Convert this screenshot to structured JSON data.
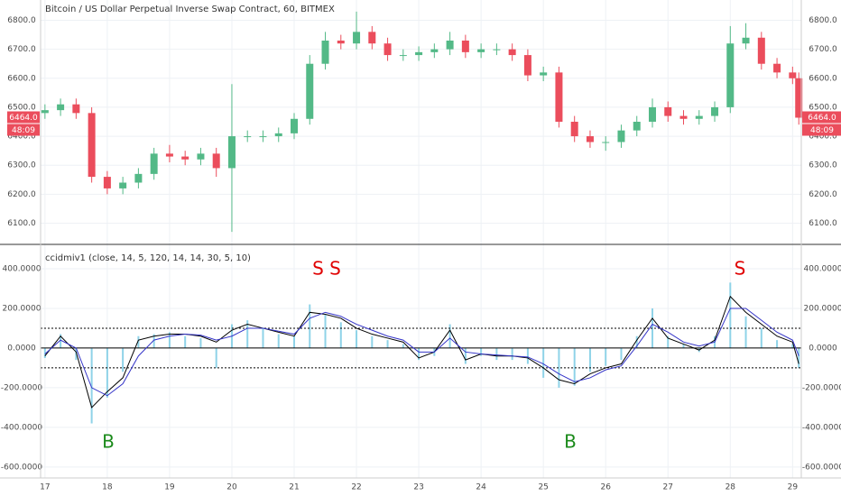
{
  "chart_data": [
    {
      "type": "candlestick",
      "title": "Bitcoin / US Dollar Perpetual Inverse Swap Contract, 60, BITMEX",
      "x": [
        17,
        17.25,
        17.5,
        17.75,
        18,
        18.25,
        18.5,
        18.75,
        19,
        19.25,
        19.5,
        19.75,
        20,
        20.25,
        20.5,
        20.75,
        21,
        21.25,
        21.5,
        21.75,
        22,
        22.25,
        22.5,
        22.75,
        23,
        23.25,
        23.5,
        23.75,
        24,
        24.25,
        24.5,
        24.75,
        25,
        25.25,
        25.5,
        25.75,
        26,
        26.25,
        26.5,
        26.75,
        27,
        27.25,
        27.5,
        27.75,
        28,
        28.25,
        28.5,
        28.75,
        29,
        29.1
      ],
      "open": [
        6480,
        6490,
        6510,
        6480,
        6260,
        6220,
        6240,
        6270,
        6340,
        6330,
        6320,
        6340,
        6290,
        6400,
        6400,
        6400,
        6410,
        6460,
        6650,
        6730,
        6720,
        6760,
        6720,
        6680,
        6680,
        6690,
        6700,
        6730,
        6690,
        6700,
        6700,
        6680,
        6610,
        6620,
        6450,
        6400,
        6380,
        6380,
        6420,
        6450,
        6500,
        6470,
        6460,
        6470,
        6500,
        6720,
        6740,
        6650,
        6620,
        6600
      ],
      "high": [
        6510,
        6530,
        6530,
        6500,
        6280,
        6260,
        6290,
        6360,
        6370,
        6350,
        6360,
        6360,
        6580,
        6420,
        6420,
        6430,
        6480,
        6680,
        6760,
        6750,
        6830,
        6780,
        6740,
        6700,
        6710,
        6720,
        6760,
        6750,
        6720,
        6720,
        6720,
        6700,
        6640,
        6640,
        6470,
        6420,
        6400,
        6440,
        6470,
        6530,
        6520,
        6490,
        6490,
        6520,
        6780,
        6790,
        6760,
        6670,
        6640,
        6620
      ],
      "low": [
        6460,
        6470,
        6460,
        6240,
        6200,
        6200,
        6220,
        6250,
        6310,
        6300,
        6300,
        6260,
        6070,
        6380,
        6380,
        6380,
        6390,
        6440,
        6630,
        6700,
        6700,
        6700,
        6660,
        6660,
        6660,
        6670,
        6680,
        6670,
        6670,
        6680,
        6660,
        6590,
        6590,
        6430,
        6380,
        6360,
        6350,
        6360,
        6400,
        6430,
        6450,
        6440,
        6440,
        6450,
        6480,
        6700,
        6630,
        6600,
        6580,
        6440
      ],
      "close": [
        6490,
        6510,
        6480,
        6260,
        6220,
        6240,
        6270,
        6340,
        6330,
        6320,
        6340,
        6290,
        6400,
        6400,
        6400,
        6410,
        6460,
        6650,
        6730,
        6720,
        6760,
        6720,
        6680,
        6680,
        6690,
        6700,
        6730,
        6690,
        6700,
        6700,
        6680,
        6610,
        6620,
        6450,
        6400,
        6380,
        6380,
        6420,
        6450,
        6500,
        6470,
        6460,
        6470,
        6500,
        6720,
        6740,
        6650,
        6620,
        6600,
        6464
      ],
      "up_color": "#53b987",
      "down_color": "#eb4d5c",
      "xlim": [
        16.93,
        29.14
      ],
      "xticks": [
        17,
        18,
        19,
        20,
        21,
        22,
        23,
        24,
        25,
        26,
        27,
        28,
        29
      ],
      "ylim": [
        6030,
        6870
      ],
      "yticks": [
        {
          "value": 6100,
          "label": "6100.0"
        },
        {
          "value": 6200,
          "label": "6200.0"
        },
        {
          "value": 6300,
          "label": "6300.0"
        },
        {
          "value": 6400,
          "label": "6400.0"
        },
        {
          "value": 6500,
          "label": "6500.0"
        },
        {
          "value": 6600,
          "label": "6600.0"
        },
        {
          "value": 6700,
          "label": "6700.0"
        },
        {
          "value": 6800,
          "label": "6800.0"
        }
      ],
      "last_price": "6464.0",
      "countdown": "48:09",
      "grid": true
    },
    {
      "type": "indicator",
      "title": "ccidmiv1 (close, 14, 5, 120, 14, 14, 30, 5, 10)",
      "x": [
        17,
        17.25,
        17.5,
        17.75,
        18,
        18.25,
        18.5,
        18.75,
        19,
        19.25,
        19.5,
        19.75,
        20,
        20.25,
        20.5,
        20.75,
        21,
        21.25,
        21.5,
        21.75,
        22,
        22.25,
        22.5,
        22.75,
        23,
        23.25,
        23.5,
        23.75,
        24,
        24.25,
        24.5,
        24.75,
        25,
        25.25,
        25.5,
        25.75,
        26,
        26.25,
        26.5,
        26.75,
        27,
        27.25,
        27.5,
        27.75,
        28,
        28.25,
        28.5,
        28.75,
        29,
        29.1
      ],
      "histogram": {
        "color": "#8fd3e8",
        "values": [
          -50,
          70,
          -60,
          -380,
          -250,
          -120,
          60,
          70,
          80,
          60,
          50,
          -100,
          120,
          140,
          100,
          70,
          60,
          220,
          170,
          130,
          90,
          60,
          40,
          20,
          -60,
          -40,
          120,
          -80,
          -40,
          -60,
          -60,
          -80,
          -150,
          -200,
          -190,
          -120,
          -90,
          -60,
          60,
          200,
          60,
          20,
          -20,
          60,
          330,
          160,
          100,
          40,
          20,
          -100
        ]
      },
      "series": [
        {
          "color": "#000000",
          "values": [
            -40,
            60,
            -20,
            -300,
            -220,
            -150,
            40,
            60,
            70,
            70,
            60,
            30,
            90,
            120,
            100,
            80,
            60,
            180,
            170,
            150,
            100,
            70,
            50,
            30,
            -50,
            -20,
            90,
            -60,
            -30,
            -40,
            -40,
            -50,
            -100,
            -160,
            -180,
            -130,
            -100,
            -80,
            40,
            150,
            50,
            20,
            -10,
            40,
            260,
            180,
            120,
            60,
            30,
            -80
          ]
        },
        {
          "color": "#3535c8",
          "values": [
            -30,
            40,
            0,
            -200,
            -240,
            -180,
            -40,
            40,
            60,
            70,
            65,
            40,
            60,
            100,
            100,
            85,
            70,
            150,
            180,
            160,
            120,
            90,
            60,
            40,
            -20,
            -20,
            50,
            -20,
            -30,
            -35,
            -40,
            -45,
            -80,
            -130,
            -170,
            -150,
            -110,
            -90,
            10,
            120,
            80,
            30,
            10,
            30,
            200,
            200,
            140,
            80,
            40,
            -40
          ]
        }
      ],
      "levels": [
        100,
        0,
        -100
      ],
      "xlim": [
        16.93,
        29.14
      ],
      "ylim": [
        -655,
        518
      ],
      "yticks": [
        {
          "value": -600,
          "label": "-600.0000"
        },
        {
          "value": -400,
          "label": "-400.0000"
        },
        {
          "value": -200,
          "label": "-200.0000"
        },
        {
          "value": 0,
          "label": "0.0000"
        },
        {
          "value": 200,
          "label": "200.0000"
        },
        {
          "value": 400,
          "label": "400.0000"
        }
      ],
      "annotations": [
        {
          "text": "S S",
          "color": "#e00000"
        },
        {
          "text": "S",
          "color": "#e00000"
        },
        {
          "text": "B",
          "color": "#1a8a1a"
        },
        {
          "text": "B",
          "color": "#1a8a1a"
        }
      ],
      "grid": true
    }
  ]
}
